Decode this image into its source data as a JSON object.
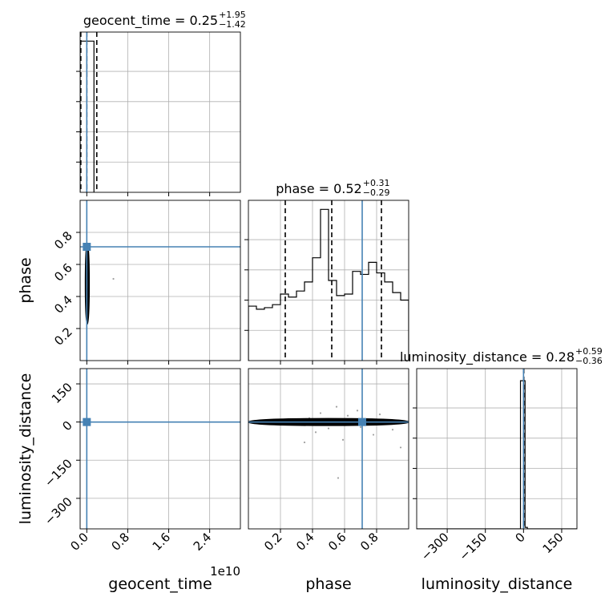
{
  "chart_data": {
    "type": "corner",
    "parameters": [
      "geocent_time",
      "phase",
      "luminosity_distance"
    ],
    "axis_labels": {
      "geocent_time": "geocent_time",
      "phase": "phase",
      "luminosity_distance": "luminosity_distance"
    },
    "truth_color": "#4682b4",
    "truths": {
      "geocent_time": 0.0,
      "phase": 0.71,
      "luminosity_distance": 0.0
    },
    "titles": [
      {
        "param": "geocent_time",
        "text": "geocent_time = 0.25",
        "plus": "+1.95",
        "minus": "−1.42"
      },
      {
        "param": "phase",
        "text": "phase = 0.52",
        "plus": "+0.31",
        "minus": "−0.29"
      },
      {
        "param": "luminosity_distance",
        "text": "luminosity_distance = 0.28",
        "plus": "+0.59",
        "minus": "−0.36"
      }
    ],
    "ranges": {
      "geocent_time": [
        -1300000000.0,
        30000000000.0
      ],
      "phase": [
        0.0,
        1.0
      ],
      "luminosity_distance": [
        -420,
        210
      ]
    },
    "offset_text": {
      "geocent_time": "1e10"
    },
    "ticks": {
      "geocent_time": {
        "values": [
          0.0,
          8000000000.0,
          16000000000.0,
          24000000000.0
        ],
        "labels": [
          "0.0",
          "0.8",
          "1.6",
          "2.4"
        ]
      },
      "phase": {
        "values": [
          0.2,
          0.4,
          0.6,
          0.8
        ],
        "labels": [
          "0.2",
          "0.4",
          "0.6",
          "0.8"
        ]
      },
      "luminosity_distance": {
        "values": [
          -300,
          -150,
          0,
          150
        ],
        "labels": [
          "−300",
          "−150",
          "0",
          "150"
        ]
      }
    },
    "histograms": {
      "geocent_time": {
        "bin_edges": [
          -1300000000.0,
          1400000000.0
        ],
        "counts": [
          1.0
        ],
        "quantiles": [
          -1170000000.0,
          0.25,
          1950000000.0
        ]
      },
      "phase": {
        "bin_edges": [
          0.0,
          0.05,
          0.1,
          0.15,
          0.2,
          0.25,
          0.3,
          0.35,
          0.4,
          0.45,
          0.5,
          0.55,
          0.6,
          0.65,
          0.7,
          0.75,
          0.8,
          0.85,
          0.9,
          0.95,
          1.0
        ],
        "counts": [
          0.36,
          0.34,
          0.35,
          0.37,
          0.44,
          0.42,
          0.46,
          0.52,
          0.68,
          1.0,
          0.53,
          0.43,
          0.44,
          0.59,
          0.57,
          0.65,
          0.58,
          0.52,
          0.45,
          0.4
        ],
        "quantiles": [
          0.23,
          0.52,
          0.83
        ]
      },
      "luminosity_distance": {
        "bin_edges": [
          -420,
          -12,
          6,
          15,
          210
        ],
        "counts": [
          0.0,
          0.98,
          0.01,
          0.0
        ],
        "quantiles": [
          -0.08,
          0.28,
          0.87
        ]
      }
    },
    "histogram_ymax": {
      "geocent_time": 1.0,
      "phase": 1.0,
      "luminosity_distance": 1.0
    },
    "hist_yticks_fraction": [
      0.2,
      0.4,
      0.6,
      0.8
    ],
    "contours": [
      {
        "x": "geocent_time",
        "y": "phase",
        "center": [
          100000000.0,
          0.48
        ],
        "half_widths": [
          [
            300000000.0,
            0.25
          ],
          [
            230000000.0,
            0.19
          ],
          [
            150000000.0,
            0.12
          ],
          [
            90000000.0,
            0.06
          ]
        ],
        "outlier_points": [
          [
            5200000000.0,
            0.51
          ]
        ]
      },
      {
        "x": "geocent_time",
        "y": "luminosity_distance",
        "center": [
          150000000.0,
          0.0
        ],
        "half_widths": [
          [
            350000000.0,
            8
          ],
          [
            250000000.0,
            5
          ]
        ],
        "outlier_points": []
      },
      {
        "x": "phase",
        "y": "luminosity_distance",
        "center": [
          0.5,
          0.0
        ],
        "half_widths": [
          [
            0.5,
            12
          ],
          [
            0.5,
            6
          ]
        ],
        "outlier_points": [
          [
            0.42,
            -40
          ],
          [
            0.35,
            -80
          ],
          [
            0.59,
            -70
          ],
          [
            0.56,
            -220
          ],
          [
            0.78,
            -50
          ],
          [
            0.82,
            30
          ],
          [
            0.45,
            35
          ],
          [
            0.62,
            25
          ],
          [
            0.7,
            -20
          ],
          [
            0.9,
            -30
          ],
          [
            0.95,
            -100
          ],
          [
            0.38,
            15
          ],
          [
            0.5,
            -25
          ],
          [
            0.68,
            45
          ],
          [
            0.55,
            60
          ]
        ]
      }
    ]
  }
}
